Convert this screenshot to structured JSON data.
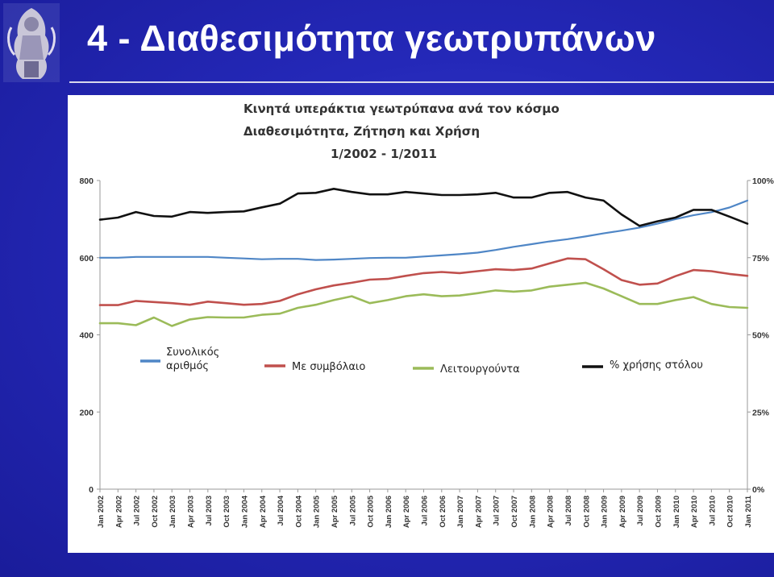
{
  "slide": {
    "title": "4 - Διαθεσιμότητα γεωτρυπάνων"
  },
  "colors": {
    "background": "#2428b8",
    "total": "#4f86c6",
    "contracted": "#c0504d",
    "working": "#9bbb59",
    "utilization": "#111111"
  },
  "chart_data": {
    "type": "line",
    "title_lines": [
      "Κινητά υπεράκτια γεωτρύπανα ανά τον κόσμο",
      "Διαθεσιμότητα, Ζήτηση και Χρήση",
      "1/2002 - 1/2011"
    ],
    "x_tick_labels": [
      "Jan 2002",
      "Apr 2002",
      "Jul 2002",
      "Oct 2002",
      "Jan 2003",
      "Apr 2003",
      "Jul 2003",
      "Oct 2003",
      "Jan 2004",
      "Apr 2004",
      "Jul 2004",
      "Oct 2004",
      "Jan 2005",
      "Apr 2005",
      "Jul 2005",
      "Oct 2005",
      "Jan 2006",
      "Apr 2006",
      "Jul 2006",
      "Oct 2006",
      "Jan 2007",
      "Apr 2007",
      "Jul 2007",
      "Oct 2007",
      "Jan 2008",
      "Apr 2008",
      "Jul 2008",
      "Oct 2008",
      "Jan 2009",
      "Apr 2009",
      "Jul 2009",
      "Oct 2009",
      "Jan 2010",
      "Apr 2010",
      "Jul 2010",
      "Oct 2010",
      "Jan 2011"
    ],
    "y_left": {
      "min": 0,
      "max": 800,
      "ticks": [
        "0",
        "200",
        "400",
        "600",
        "800"
      ]
    },
    "y_right": {
      "min": 0,
      "max": 100,
      "ticks": [
        "0%",
        "25%",
        "50%",
        "75%",
        "100%"
      ]
    },
    "grid": false,
    "legend": [
      {
        "key": "total",
        "label_lines": [
          "Συνολικός",
          "αριθμός"
        ]
      },
      {
        "key": "contracted",
        "label_lines": [
          "Με συμβόλαιο"
        ]
      },
      {
        "key": "working",
        "label_lines": [
          "Λειτουργούντα"
        ]
      },
      {
        "key": "utilization",
        "label_lines": [
          "% χρήσης στόλου"
        ]
      }
    ],
    "series": [
      {
        "name": "Συνολικός αριθμός",
        "key": "total",
        "axis": "left",
        "values": [
          600,
          600,
          602,
          602,
          602,
          602,
          602,
          600,
          598,
          596,
          597,
          597,
          594,
          595,
          597,
          599,
          600,
          600,
          603,
          606,
          609,
          613,
          620,
          628,
          635,
          642,
          648,
          655,
          663,
          670,
          678,
          688,
          700,
          710,
          718,
          730,
          748
        ]
      },
      {
        "name": "Με συμβόλαιο",
        "key": "contracted",
        "axis": "left",
        "values": [
          477,
          477,
          488,
          485,
          482,
          478,
          486,
          482,
          478,
          480,
          488,
          505,
          518,
          528,
          535,
          543,
          545,
          553,
          560,
          563,
          560,
          565,
          570,
          568,
          572,
          585,
          598,
          596,
          570,
          542,
          530,
          533,
          552,
          568,
          565,
          558,
          553
        ]
      },
      {
        "name": "Λειτουργούντα",
        "key": "working",
        "axis": "left",
        "values": [
          430,
          430,
          425,
          445,
          423,
          440,
          446,
          445,
          445,
          452,
          455,
          470,
          478,
          490,
          500,
          482,
          490,
          500,
          505,
          500,
          502,
          508,
          515,
          512,
          515,
          525,
          530,
          535,
          520,
          500,
          480,
          480,
          490,
          498,
          480,
          472,
          470
        ]
      },
      {
        "name": "% χρήσης στόλου",
        "key": "utilization",
        "axis": "right",
        "values": [
          87.3,
          88.0,
          89.8,
          88.5,
          88.3,
          89.8,
          89.5,
          89.8,
          90.0,
          91.3,
          92.5,
          95.8,
          96.0,
          97.3,
          96.3,
          95.5,
          95.5,
          96.3,
          95.8,
          95.3,
          95.3,
          95.5,
          96.0,
          94.5,
          94.5,
          96.0,
          96.3,
          94.5,
          93.5,
          89.0,
          85.3,
          86.8,
          88.0,
          90.5,
          90.5,
          88.3,
          86.0
        ]
      }
    ]
  }
}
